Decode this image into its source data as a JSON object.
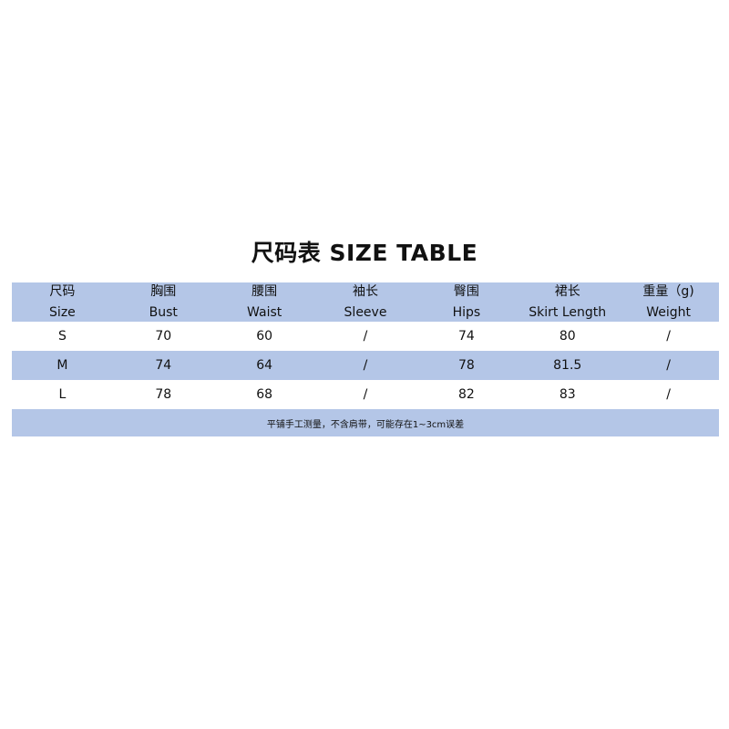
{
  "title": "尺码表  SIZE TABLE",
  "colors": {
    "header_bg": "#b4c6e7",
    "row_bg": "#ffffff"
  },
  "columns": [
    {
      "cn": "尺码",
      "en": "Size"
    },
    {
      "cn": "胸围",
      "en": "Bust"
    },
    {
      "cn": "腰围",
      "en": "Waist"
    },
    {
      "cn": "袖长",
      "en": "Sleeve"
    },
    {
      "cn": "臀围",
      "en": "Hips"
    },
    {
      "cn": "裙长",
      "en": "Skirt Length"
    },
    {
      "cn": "重量（g)",
      "en": "Weight"
    }
  ],
  "rows": [
    [
      "S",
      "70",
      "60",
      "/",
      "74",
      "80",
      "/"
    ],
    [
      "M",
      "74",
      "64",
      "/",
      "78",
      "81.5",
      "/"
    ],
    [
      "L",
      "78",
      "68",
      "/",
      "82",
      "83",
      "/"
    ]
  ],
  "note": "平铺手工测量，不含肩带，可能存在1~3cm误差"
}
